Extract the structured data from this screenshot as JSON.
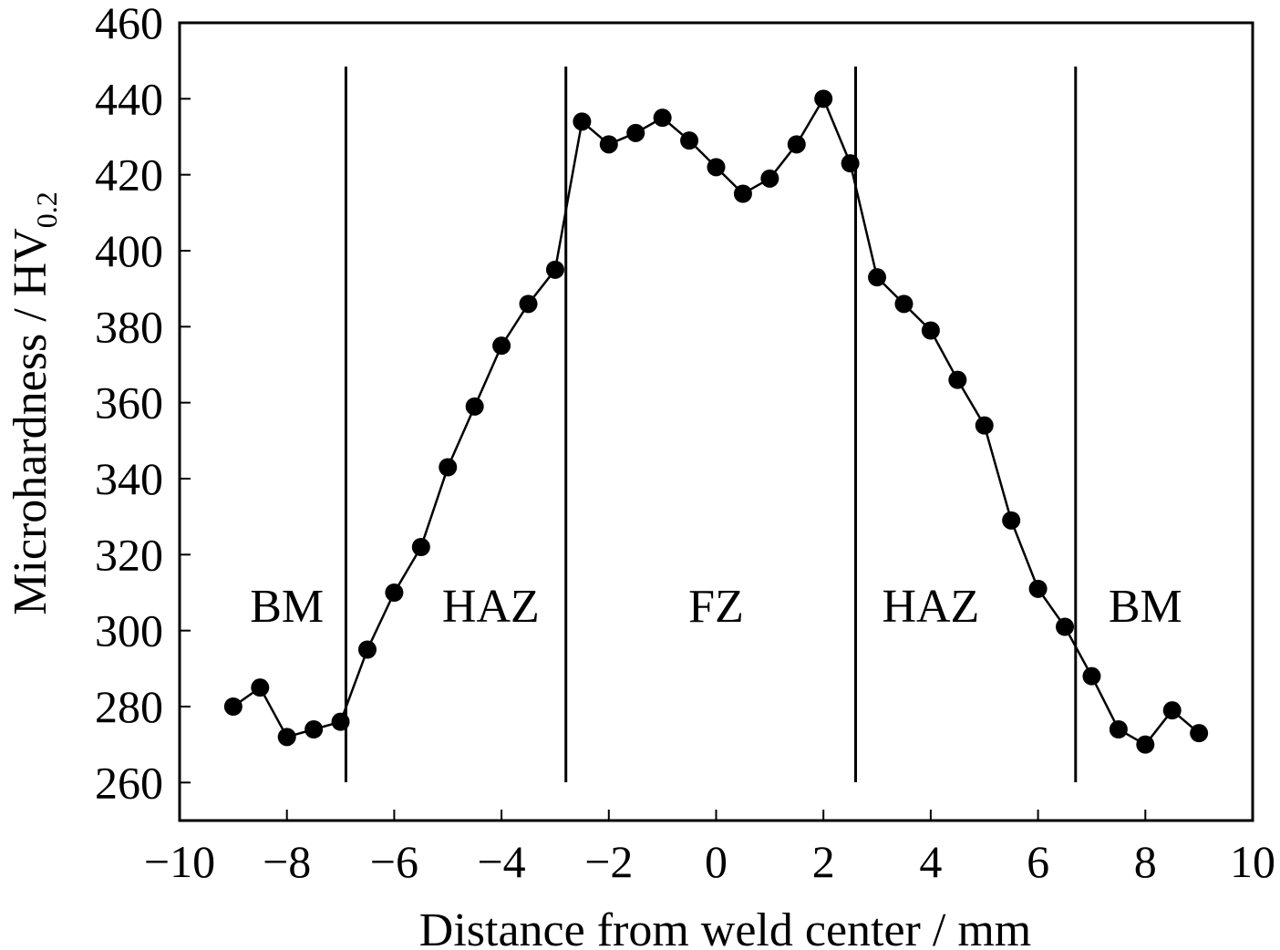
{
  "chart_data": {
    "type": "line",
    "xlabel": "Distance from weld center / mm",
    "ylabel_main": "Microhardness / HV",
    "ylabel_subscript": "0.2",
    "xlim": [
      -10,
      10
    ],
    "ylim": [
      250,
      460
    ],
    "x_ticks": [
      -10,
      -8,
      -6,
      -4,
      -2,
      0,
      2,
      4,
      6,
      8,
      10
    ],
    "x_tick_labels": [
      "−10",
      "−8",
      "−6",
      "−4",
      "−2",
      "0",
      "2",
      "4",
      "6",
      "8",
      "10"
    ],
    "y_ticks": [
      260,
      280,
      300,
      320,
      340,
      360,
      380,
      400,
      420,
      440,
      460
    ],
    "y_tick_labels": [
      "260",
      "280",
      "300",
      "320",
      "340",
      "360",
      "380",
      "400",
      "420",
      "440",
      "460"
    ],
    "boundaries": [
      -6.9,
      -2.8,
      2.6,
      6.7
    ],
    "regions": [
      {
        "label": "BM",
        "x": -8.0
      },
      {
        "label": "HAZ",
        "x": -4.2
      },
      {
        "label": "FZ",
        "x": 0.0
      },
      {
        "label": "HAZ",
        "x": 4.0
      },
      {
        "label": "BM",
        "x": 8.0
      }
    ],
    "series": [
      {
        "x": [
          -9.0,
          -8.5,
          -8.0,
          -7.5,
          -7.0,
          -6.5,
          -6.0,
          -5.5,
          -5.0,
          -4.5,
          -4.0,
          -3.5,
          -3.0,
          -2.5,
          -2.0,
          -1.5,
          -1.0,
          -0.5,
          0.0,
          0.5,
          1.0,
          1.5,
          2.0,
          2.5,
          3.0,
          3.5,
          4.0,
          4.5,
          5.0,
          5.5,
          6.0,
          6.5,
          7.0,
          7.5,
          8.0,
          8.5,
          9.0
        ],
        "values": [
          280,
          285,
          272,
          274,
          276,
          295,
          310,
          322,
          343,
          359,
          375,
          386,
          395,
          434,
          428,
          431,
          435,
          429,
          422,
          415,
          419,
          428,
          440,
          423,
          393,
          386,
          379,
          366,
          354,
          329,
          311,
          301,
          288,
          274,
          270,
          279,
          273
        ]
      }
    ],
    "grid": false,
    "colors": {
      "line": "#000000",
      "marker": "#000000",
      "axis": "#000000",
      "background": "#ffffff"
    }
  }
}
